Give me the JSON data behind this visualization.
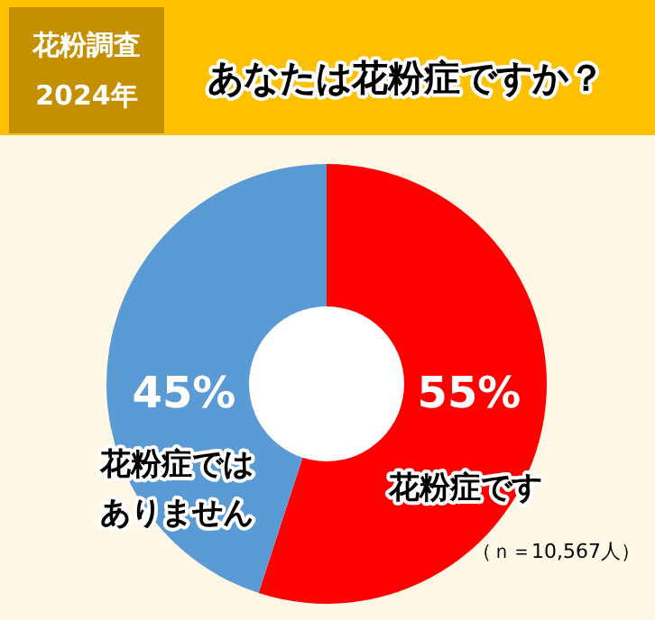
{
  "chart_data": {
    "type": "donut",
    "title": "あなたは花粉症ですか？",
    "categories": [
      "花粉症です",
      "花粉症ではありません"
    ],
    "values": [
      55,
      45
    ],
    "colors": [
      "#ff0000",
      "#5b9bd5"
    ],
    "value_labels": [
      "55%",
      "45%"
    ],
    "annotations": [
      "花粉調査",
      "2024年",
      "（ｎ＝10,567人）"
    ],
    "legend": false
  }
}
